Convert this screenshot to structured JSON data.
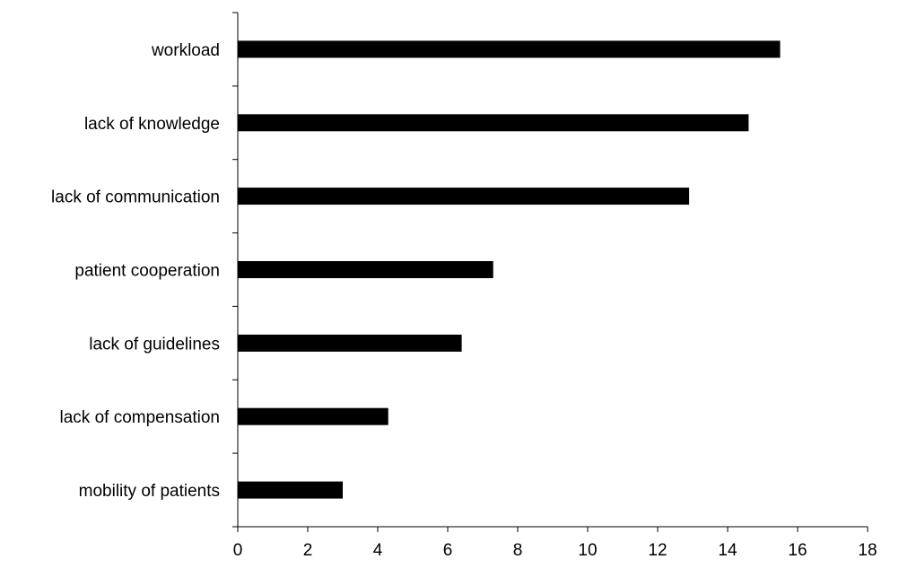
{
  "chart_data": {
    "type": "bar",
    "orientation": "horizontal",
    "title": "",
    "xlabel": "",
    "ylabel": "",
    "categories": [
      "workload",
      "lack of knowledge",
      "lack of communication",
      "patient cooperation",
      "lack of guidelines",
      "lack of compensation",
      "mobility of patients"
    ],
    "values": [
      15.5,
      14.6,
      12.9,
      7.3,
      6.4,
      4.3,
      3.0
    ],
    "xlim": [
      0,
      18
    ],
    "xticks": [
      0,
      2,
      4,
      6,
      8,
      10,
      12,
      14,
      16,
      18
    ],
    "grid": false,
    "legend": "none",
    "colors": {
      "bar": "#000000",
      "axis": "#000000",
      "background": "#ffffff"
    }
  }
}
